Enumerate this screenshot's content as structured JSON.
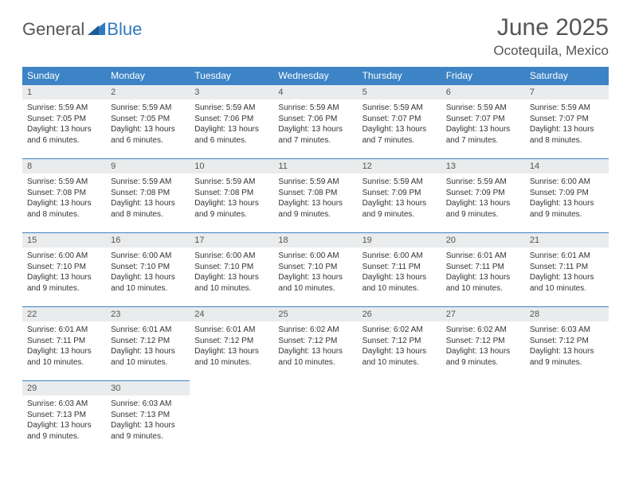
{
  "logo": {
    "word1": "General",
    "word2": "Blue",
    "icon_color": "#2f7bbf"
  },
  "title": "June 2025",
  "location": "Ocotequila, Mexico",
  "colors": {
    "header_bg": "#3d84c6",
    "header_text": "#ffffff",
    "daynum_bg": "#e9ebec",
    "border": "#3d84c6",
    "text": "#333333",
    "title_text": "#555555"
  },
  "day_headers": [
    "Sunday",
    "Monday",
    "Tuesday",
    "Wednesday",
    "Thursday",
    "Friday",
    "Saturday"
  ],
  "weeks": [
    [
      {
        "n": "1",
        "sr": "Sunrise: 5:59 AM",
        "ss": "Sunset: 7:05 PM",
        "d1": "Daylight: 13 hours",
        "d2": "and 6 minutes."
      },
      {
        "n": "2",
        "sr": "Sunrise: 5:59 AM",
        "ss": "Sunset: 7:05 PM",
        "d1": "Daylight: 13 hours",
        "d2": "and 6 minutes."
      },
      {
        "n": "3",
        "sr": "Sunrise: 5:59 AM",
        "ss": "Sunset: 7:06 PM",
        "d1": "Daylight: 13 hours",
        "d2": "and 6 minutes."
      },
      {
        "n": "4",
        "sr": "Sunrise: 5:59 AM",
        "ss": "Sunset: 7:06 PM",
        "d1": "Daylight: 13 hours",
        "d2": "and 7 minutes."
      },
      {
        "n": "5",
        "sr": "Sunrise: 5:59 AM",
        "ss": "Sunset: 7:07 PM",
        "d1": "Daylight: 13 hours",
        "d2": "and 7 minutes."
      },
      {
        "n": "6",
        "sr": "Sunrise: 5:59 AM",
        "ss": "Sunset: 7:07 PM",
        "d1": "Daylight: 13 hours",
        "d2": "and 7 minutes."
      },
      {
        "n": "7",
        "sr": "Sunrise: 5:59 AM",
        "ss": "Sunset: 7:07 PM",
        "d1": "Daylight: 13 hours",
        "d2": "and 8 minutes."
      }
    ],
    [
      {
        "n": "8",
        "sr": "Sunrise: 5:59 AM",
        "ss": "Sunset: 7:08 PM",
        "d1": "Daylight: 13 hours",
        "d2": "and 8 minutes."
      },
      {
        "n": "9",
        "sr": "Sunrise: 5:59 AM",
        "ss": "Sunset: 7:08 PM",
        "d1": "Daylight: 13 hours",
        "d2": "and 8 minutes."
      },
      {
        "n": "10",
        "sr": "Sunrise: 5:59 AM",
        "ss": "Sunset: 7:08 PM",
        "d1": "Daylight: 13 hours",
        "d2": "and 9 minutes."
      },
      {
        "n": "11",
        "sr": "Sunrise: 5:59 AM",
        "ss": "Sunset: 7:08 PM",
        "d1": "Daylight: 13 hours",
        "d2": "and 9 minutes."
      },
      {
        "n": "12",
        "sr": "Sunrise: 5:59 AM",
        "ss": "Sunset: 7:09 PM",
        "d1": "Daylight: 13 hours",
        "d2": "and 9 minutes."
      },
      {
        "n": "13",
        "sr": "Sunrise: 5:59 AM",
        "ss": "Sunset: 7:09 PM",
        "d1": "Daylight: 13 hours",
        "d2": "and 9 minutes."
      },
      {
        "n": "14",
        "sr": "Sunrise: 6:00 AM",
        "ss": "Sunset: 7:09 PM",
        "d1": "Daylight: 13 hours",
        "d2": "and 9 minutes."
      }
    ],
    [
      {
        "n": "15",
        "sr": "Sunrise: 6:00 AM",
        "ss": "Sunset: 7:10 PM",
        "d1": "Daylight: 13 hours",
        "d2": "and 9 minutes."
      },
      {
        "n": "16",
        "sr": "Sunrise: 6:00 AM",
        "ss": "Sunset: 7:10 PM",
        "d1": "Daylight: 13 hours",
        "d2": "and 10 minutes."
      },
      {
        "n": "17",
        "sr": "Sunrise: 6:00 AM",
        "ss": "Sunset: 7:10 PM",
        "d1": "Daylight: 13 hours",
        "d2": "and 10 minutes."
      },
      {
        "n": "18",
        "sr": "Sunrise: 6:00 AM",
        "ss": "Sunset: 7:10 PM",
        "d1": "Daylight: 13 hours",
        "d2": "and 10 minutes."
      },
      {
        "n": "19",
        "sr": "Sunrise: 6:00 AM",
        "ss": "Sunset: 7:11 PM",
        "d1": "Daylight: 13 hours",
        "d2": "and 10 minutes."
      },
      {
        "n": "20",
        "sr": "Sunrise: 6:01 AM",
        "ss": "Sunset: 7:11 PM",
        "d1": "Daylight: 13 hours",
        "d2": "and 10 minutes."
      },
      {
        "n": "21",
        "sr": "Sunrise: 6:01 AM",
        "ss": "Sunset: 7:11 PM",
        "d1": "Daylight: 13 hours",
        "d2": "and 10 minutes."
      }
    ],
    [
      {
        "n": "22",
        "sr": "Sunrise: 6:01 AM",
        "ss": "Sunset: 7:11 PM",
        "d1": "Daylight: 13 hours",
        "d2": "and 10 minutes."
      },
      {
        "n": "23",
        "sr": "Sunrise: 6:01 AM",
        "ss": "Sunset: 7:12 PM",
        "d1": "Daylight: 13 hours",
        "d2": "and 10 minutes."
      },
      {
        "n": "24",
        "sr": "Sunrise: 6:01 AM",
        "ss": "Sunset: 7:12 PM",
        "d1": "Daylight: 13 hours",
        "d2": "and 10 minutes."
      },
      {
        "n": "25",
        "sr": "Sunrise: 6:02 AM",
        "ss": "Sunset: 7:12 PM",
        "d1": "Daylight: 13 hours",
        "d2": "and 10 minutes."
      },
      {
        "n": "26",
        "sr": "Sunrise: 6:02 AM",
        "ss": "Sunset: 7:12 PM",
        "d1": "Daylight: 13 hours",
        "d2": "and 10 minutes."
      },
      {
        "n": "27",
        "sr": "Sunrise: 6:02 AM",
        "ss": "Sunset: 7:12 PM",
        "d1": "Daylight: 13 hours",
        "d2": "and 9 minutes."
      },
      {
        "n": "28",
        "sr": "Sunrise: 6:03 AM",
        "ss": "Sunset: 7:12 PM",
        "d1": "Daylight: 13 hours",
        "d2": "and 9 minutes."
      }
    ],
    [
      {
        "n": "29",
        "sr": "Sunrise: 6:03 AM",
        "ss": "Sunset: 7:13 PM",
        "d1": "Daylight: 13 hours",
        "d2": "and 9 minutes."
      },
      {
        "n": "30",
        "sr": "Sunrise: 6:03 AM",
        "ss": "Sunset: 7:13 PM",
        "d1": "Daylight: 13 hours",
        "d2": "and 9 minutes."
      },
      {
        "empty": true
      },
      {
        "empty": true
      },
      {
        "empty": true
      },
      {
        "empty": true
      },
      {
        "empty": true
      }
    ]
  ]
}
